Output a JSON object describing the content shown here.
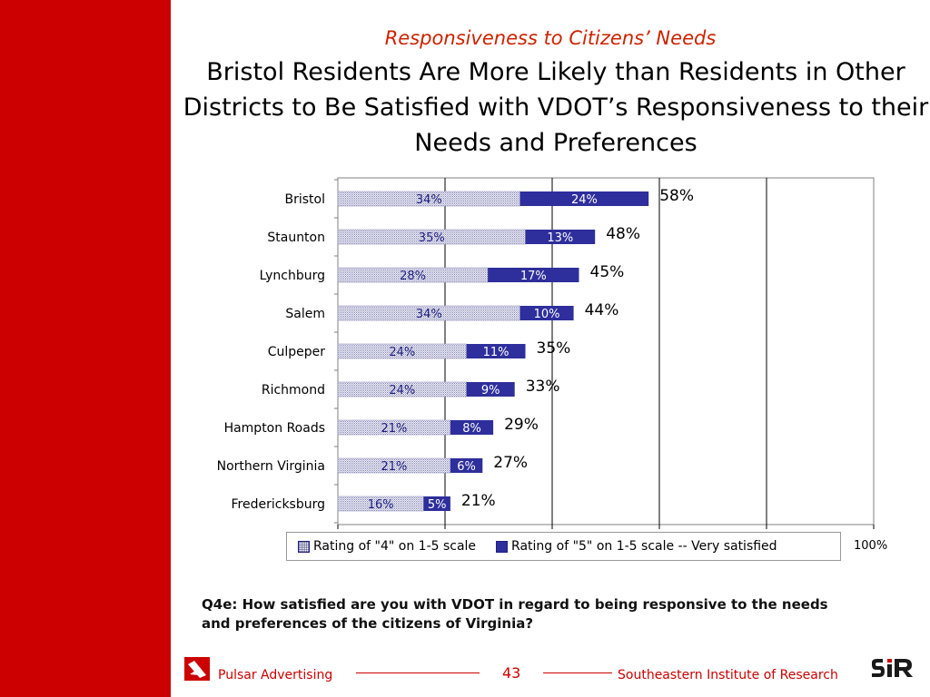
{
  "header": {
    "subtitle": "Responsiveness to Citizens’ Needs",
    "title": "Bristol Residents Are More Likely than Residents in Other Districts to Be Satisfied with VDOT’s Responsiveness to their Needs and Preferences"
  },
  "chart_data": {
    "type": "bar",
    "orientation": "horizontal",
    "stacked": true,
    "categories": [
      "Bristol",
      "Staunton",
      "Lynchburg",
      "Salem",
      "Culpeper",
      "Richmond",
      "Hampton Roads",
      "Northern Virginia",
      "Fredericksburg"
    ],
    "series": [
      {
        "name": "Rating of \"4\" on 1-5 scale",
        "values": [
          34,
          35,
          28,
          34,
          24,
          24,
          21,
          21,
          16
        ],
        "labels": [
          "34%",
          "35%",
          "28%",
          "34%",
          "24%",
          "24%",
          "21%",
          "21%",
          "16%"
        ],
        "color": "#dcdcec",
        "pattern": "dotted"
      },
      {
        "name": "Rating of \"5\" on 1-5 scale -- Very satisfied",
        "values": [
          24,
          13,
          17,
          10,
          11,
          9,
          8,
          6,
          5
        ],
        "labels": [
          "24%",
          "13%",
          "17%",
          "10%",
          "11%",
          "9%",
          "8%",
          "6%",
          "5%"
        ],
        "color": "#2e2e9c"
      }
    ],
    "totals": [
      58,
      48,
      45,
      44,
      35,
      33,
      29,
      27,
      21
    ],
    "total_labels": [
      "58%",
      "48%",
      "45%",
      "44%",
      "35%",
      "33%",
      "29%",
      "27%",
      "21%"
    ],
    "xlim": [
      0,
      100
    ],
    "x_tick_label": "100%",
    "grid": true,
    "legend_position": "bottom"
  },
  "question": "Q4e:  How satisfied are you with VDOT in regard to being responsive to the needs and preferences of the citizens of Virginia?",
  "footer": {
    "left": "Pulsar Advertising",
    "page_number": "43",
    "right": "Southeastern Institute of Research"
  },
  "colors": {
    "brand_red": "#cc0000",
    "bar_dark": "#2e2e9c",
    "subtitle_red": "#cc2200"
  }
}
